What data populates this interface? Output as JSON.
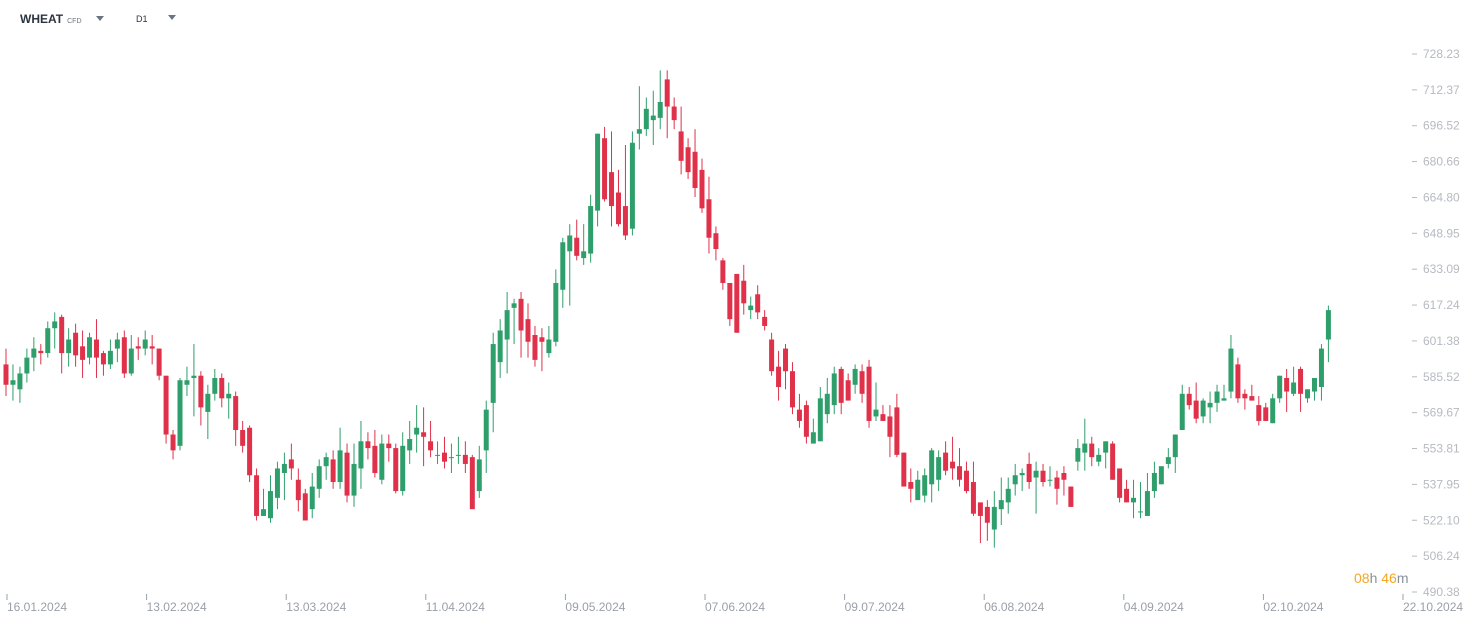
{
  "toolbar": {
    "symbol": "WHEAT",
    "symbol_type": "CFD",
    "timeframe": "D1"
  },
  "countdown": {
    "hours": "08",
    "hours_unit": "h",
    "minutes": "46",
    "minutes_unit": "m"
  },
  "colors": {
    "up": "#2e9e6b",
    "down": "#e0314a",
    "axis_text": "#b6bac1",
    "countdown": "#f5a623"
  },
  "chart_data": {
    "type": "candlestick",
    "ylim": [
      490.38,
      728.23
    ],
    "yticks": [
      728.23,
      712.37,
      696.52,
      680.66,
      664.8,
      648.95,
      633.09,
      617.24,
      601.38,
      585.52,
      569.67,
      553.81,
      537.95,
      522.1,
      506.24,
      490.38
    ],
    "ytick_labels": [
      "728.23",
      "712.37",
      "696.52",
      "680.66",
      "664.80",
      "648.95",
      "633.09",
      "617.24",
      "601.38",
      "585.52",
      "569.67",
      "553.81",
      "537.95",
      "522.10",
      "506.24",
      "490.38"
    ],
    "xticks": [
      "16.01.2024",
      "13.02.2024",
      "13.03.2024",
      "11.04.2024",
      "09.05.2024",
      "07.06.2024",
      "09.07.2024",
      "06.08.2024",
      "04.09.2024",
      "02.10.2024",
      "22.10.2024"
    ],
    "candles": [
      [
        591,
        582,
        598,
        577
      ],
      [
        582,
        584,
        591,
        575
      ],
      [
        580,
        587,
        590,
        574
      ],
      [
        587,
        594,
        598,
        583
      ],
      [
        594,
        598,
        603,
        588
      ],
      [
        597,
        596,
        600,
        591
      ],
      [
        596,
        607,
        610,
        594
      ],
      [
        607,
        610,
        614,
        598
      ],
      [
        612,
        596,
        613,
        587
      ],
      [
        596,
        602,
        607,
        590
      ],
      [
        605,
        595,
        609,
        590
      ],
      [
        599,
        593,
        606,
        585
      ],
      [
        594,
        603,
        605,
        591
      ],
      [
        602,
        594,
        611,
        585
      ],
      [
        596,
        591,
        597,
        586
      ],
      [
        591,
        597,
        602,
        589
      ],
      [
        598,
        602,
        605,
        592
      ],
      [
        603,
        587,
        606,
        585
      ],
      [
        587,
        598,
        604,
        586
      ],
      [
        599,
        598,
        603,
        593
      ],
      [
        598,
        602,
        606,
        595
      ],
      [
        599,
        598,
        604,
        591
      ],
      [
        598,
        586,
        598,
        584
      ],
      [
        586,
        560,
        586,
        556
      ],
      [
        560,
        553,
        562,
        549
      ],
      [
        555,
        584,
        585,
        553
      ],
      [
        582,
        584,
        590,
        577
      ],
      [
        585,
        586,
        600,
        568
      ],
      [
        586,
        572,
        588,
        564
      ],
      [
        570,
        578,
        582,
        558
      ],
      [
        578,
        585,
        589,
        575
      ],
      [
        585,
        576,
        587,
        572
      ],
      [
        576,
        578,
        583,
        567
      ],
      [
        577,
        562,
        579,
        555
      ],
      [
        562,
        555,
        566,
        552
      ],
      [
        563,
        542,
        564,
        539
      ],
      [
        542,
        524,
        545,
        522
      ],
      [
        524,
        527,
        536,
        525
      ],
      [
        523,
        535,
        542,
        521
      ],
      [
        532,
        545,
        548,
        527
      ],
      [
        543,
        547,
        552,
        531
      ],
      [
        549,
        545,
        556,
        540
      ],
      [
        540,
        531,
        545,
        526
      ],
      [
        534,
        522,
        536,
        522
      ],
      [
        527,
        537,
        543,
        523
      ],
      [
        536,
        546,
        549,
        532
      ],
      [
        546,
        550,
        552,
        540
      ],
      [
        549,
        539,
        553,
        536
      ],
      [
        539,
        553,
        563,
        536
      ],
      [
        552,
        533,
        556,
        530
      ],
      [
        533,
        547,
        556,
        528
      ],
      [
        545,
        557,
        566,
        536
      ],
      [
        557,
        554,
        561,
        549
      ],
      [
        555,
        543,
        562,
        541
      ],
      [
        540,
        556,
        560,
        538
      ],
      [
        556,
        554,
        560,
        548
      ],
      [
        554,
        535,
        556,
        534
      ],
      [
        535,
        555,
        561,
        533
      ],
      [
        553,
        558,
        566,
        547
      ],
      [
        560,
        563,
        573,
        552
      ],
      [
        561,
        559,
        572,
        546
      ],
      [
        557,
        553,
        566,
        550
      ],
      [
        551,
        551,
        557,
        547
      ],
      [
        552,
        548,
        559,
        545
      ],
      [
        550,
        550,
        556,
        543
      ],
      [
        551,
        551,
        559,
        547
      ],
      [
        551,
        547,
        557,
        543
      ],
      [
        550,
        527,
        551,
        528
      ],
      [
        535,
        549,
        555,
        532
      ],
      [
        553,
        571,
        575,
        543
      ],
      [
        574,
        600,
        605,
        561
      ],
      [
        592,
        606,
        611,
        585
      ],
      [
        602,
        615,
        623,
        587
      ],
      [
        616,
        618,
        620,
        600
      ],
      [
        620,
        606,
        623,
        594
      ],
      [
        611,
        601,
        618,
        594
      ],
      [
        604,
        593,
        608,
        590
      ],
      [
        603,
        601,
        607,
        588
      ],
      [
        596,
        602,
        608,
        594
      ],
      [
        601,
        627,
        633,
        599
      ],
      [
        624,
        645,
        647,
        616
      ],
      [
        641,
        648,
        653,
        617
      ],
      [
        647,
        639,
        655,
        637
      ],
      [
        638,
        641,
        653,
        635
      ],
      [
        640,
        661,
        666,
        636
      ],
      [
        659,
        693,
        693,
        652
      ],
      [
        691,
        664,
        696,
        663
      ],
      [
        676,
        661,
        694,
        652
      ],
      [
        667,
        653,
        677,
        652
      ],
      [
        661,
        648,
        688,
        646
      ],
      [
        651,
        689,
        694,
        648
      ],
      [
        693,
        695,
        714,
        686
      ],
      [
        695,
        704,
        709,
        692
      ],
      [
        699,
        701,
        712,
        688
      ],
      [
        700,
        707,
        721,
        695
      ],
      [
        717,
        705,
        721,
        691
      ],
      [
        705,
        699,
        709,
        695
      ],
      [
        694,
        681,
        705,
        675
      ],
      [
        687,
        676,
        691,
        673
      ],
      [
        685,
        669,
        695,
        665
      ],
      [
        677,
        660,
        682,
        658
      ],
      [
        664,
        647,
        674,
        640
      ],
      [
        649,
        642,
        652,
        637
      ],
      [
        637,
        627,
        638,
        624
      ],
      [
        627,
        611,
        627,
        608
      ],
      [
        631,
        605,
        631,
        605
      ],
      [
        628,
        618,
        635,
        613
      ],
      [
        615,
        617,
        621,
        611
      ],
      [
        622,
        614,
        626,
        611
      ],
      [
        612,
        608,
        615,
        606
      ],
      [
        602,
        588,
        605,
        586
      ],
      [
        590,
        581,
        597,
        575
      ],
      [
        598,
        588,
        600,
        580
      ],
      [
        588,
        572,
        592,
        569
      ],
      [
        571,
        566,
        578,
        563
      ],
      [
        573,
        559,
        575,
        556
      ],
      [
        556,
        561,
        567,
        556
      ],
      [
        557,
        576,
        581,
        562
      ],
      [
        569,
        578,
        585,
        565
      ],
      [
        573,
        587,
        590,
        569
      ],
      [
        589,
        574,
        590,
        569
      ],
      [
        584,
        575,
        587,
        577
      ],
      [
        582,
        589,
        591,
        578
      ],
      [
        588,
        578,
        591,
        574
      ],
      [
        590,
        566,
        593,
        563
      ],
      [
        568,
        571,
        583,
        566
      ],
      [
        569,
        566,
        573,
        566
      ],
      [
        568,
        559,
        573,
        550
      ],
      [
        572,
        551,
        578,
        550
      ],
      [
        552,
        537,
        552,
        537
      ],
      [
        539,
        536,
        545,
        530
      ],
      [
        531,
        540,
        544,
        534
      ],
      [
        533,
        542,
        545,
        530
      ],
      [
        538,
        553,
        554,
        530
      ],
      [
        540,
        550,
        553,
        535
      ],
      [
        552,
        544,
        557,
        542
      ],
      [
        548,
        545,
        559,
        540
      ],
      [
        546,
        540,
        554,
        537
      ],
      [
        544,
        535,
        548,
        534
      ],
      [
        539,
        525,
        548,
        524
      ],
      [
        530,
        524,
        529,
        512
      ],
      [
        528,
        521,
        531,
        513
      ],
      [
        518,
        528,
        535,
        510
      ],
      [
        527,
        531,
        541,
        520
      ],
      [
        530,
        536,
        541,
        525
      ],
      [
        538,
        542,
        547,
        533
      ],
      [
        542,
        543,
        545,
        535
      ],
      [
        547,
        539,
        552,
        536
      ],
      [
        541,
        544,
        548,
        525
      ],
      [
        544,
        539,
        547,
        537
      ],
      [
        540,
        540,
        546,
        537
      ],
      [
        541,
        536,
        544,
        529
      ],
      [
        543,
        540,
        546,
        533
      ],
      [
        537,
        528,
        537,
        528
      ],
      [
        548,
        554,
        558,
        544
      ],
      [
        552,
        556,
        567,
        544
      ],
      [
        556,
        550,
        559,
        546
      ],
      [
        548,
        551,
        554,
        546
      ],
      [
        552,
        557,
        557,
        545
      ],
      [
        556,
        540,
        557,
        540
      ],
      [
        545,
        532,
        545,
        530
      ],
      [
        536,
        530,
        540,
        530
      ],
      [
        530,
        532,
        540,
        523
      ],
      [
        526,
        526,
        539,
        523
      ],
      [
        524,
        535,
        543,
        525
      ],
      [
        535,
        543,
        548,
        532
      ],
      [
        538,
        546,
        543,
        538
      ],
      [
        547,
        550,
        554,
        545
      ],
      [
        550,
        560,
        560,
        543
      ],
      [
        562,
        578,
        582,
        566
      ],
      [
        578,
        573,
        581,
        571
      ],
      [
        575,
        567,
        583,
        565
      ],
      [
        568,
        575,
        576,
        565
      ],
      [
        572,
        574,
        579,
        565
      ],
      [
        574,
        579,
        582,
        570
      ],
      [
        575,
        576,
        582,
        575
      ],
      [
        579,
        598,
        604,
        576
      ],
      [
        591,
        576,
        594,
        574
      ],
      [
        578,
        576,
        580,
        571
      ],
      [
        577,
        575,
        582,
        575
      ],
      [
        573,
        566,
        577,
        564
      ],
      [
        572,
        566,
        574,
        566
      ],
      [
        565,
        576,
        578,
        565
      ],
      [
        576,
        586,
        586,
        574
      ],
      [
        585,
        579,
        589,
        570
      ],
      [
        578,
        583,
        590,
        577
      ],
      [
        589,
        578,
        590,
        570
      ],
      [
        576,
        580,
        580,
        574
      ],
      [
        579,
        585,
        585,
        575
      ],
      [
        581,
        598,
        600,
        575
      ],
      [
        602,
        615,
        617,
        592
      ]
    ]
  }
}
